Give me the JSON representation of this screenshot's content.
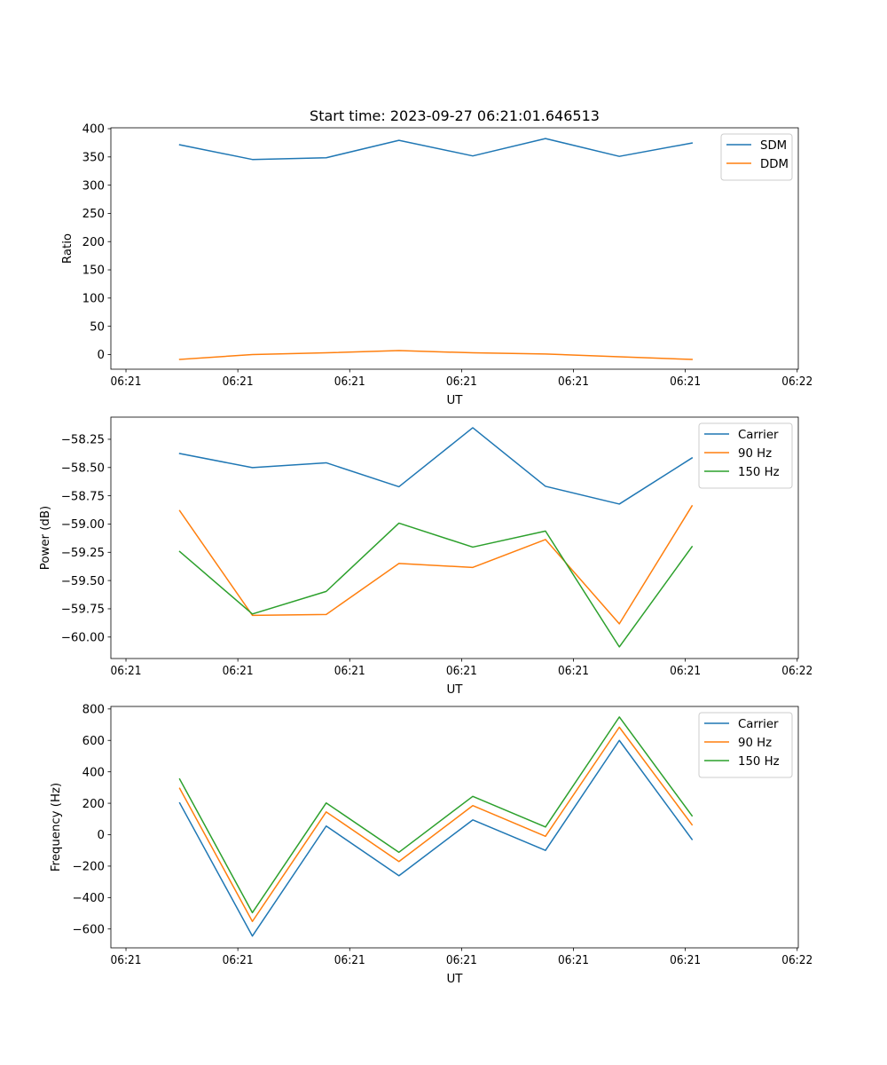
{
  "figure": {
    "title": "Start time: 2023-09-27 06:21:01.646513"
  },
  "colors": {
    "blue": "#1f77b4",
    "orange": "#ff7f0e",
    "green": "#2ca02c"
  },
  "chart_data": [
    {
      "type": "line",
      "title": "Start time: 2023-09-27 06:21:01.646513",
      "xlabel": "UT",
      "ylabel": "Ratio",
      "x_units": "seconds after 06:21:00",
      "x": [
        4.8,
        11.3,
        17.9,
        24.4,
        31.0,
        37.5,
        44.1,
        50.6
      ],
      "xlim": [
        -1.35,
        60.1
      ],
      "xticks": [
        0,
        10,
        20,
        30,
        40,
        50,
        60
      ],
      "xtick_labels": [
        "06:21",
        "06:21",
        "06:21",
        "06:21",
        "06:21",
        "06:21",
        "06:22"
      ],
      "ylim": [
        -26,
        401.6
      ],
      "yticks": [
        0,
        50,
        100,
        150,
        200,
        250,
        300,
        350,
        400
      ],
      "ytick_labels": [
        "0",
        "50",
        "100",
        "150",
        "200",
        "250",
        "300",
        "350",
        "400"
      ],
      "legend": "top-right",
      "grid": false,
      "series": [
        {
          "name": "SDM",
          "color": "#1f77b4",
          "values": [
            371.5,
            345.5,
            348.6,
            379.4,
            351.8,
            382.6,
            351.0,
            374.7
          ]
        },
        {
          "name": "DDM",
          "color": "#ff7f0e",
          "values": [
            -8.7,
            0.0,
            3.0,
            7.0,
            3.0,
            1.0,
            -4.0,
            -8.7
          ]
        }
      ]
    },
    {
      "type": "line",
      "title": "",
      "xlabel": "UT",
      "ylabel": "Power (dB)",
      "x_units": "seconds after 06:21:00",
      "x": [
        4.8,
        11.3,
        17.9,
        24.4,
        31.0,
        37.5,
        44.1,
        50.6
      ],
      "xlim": [
        -1.35,
        60.1
      ],
      "xticks": [
        0,
        10,
        20,
        30,
        40,
        50,
        60
      ],
      "xtick_labels": [
        "06:21",
        "06:21",
        "06:21",
        "06:21",
        "06:21",
        "06:21",
        "06:22"
      ],
      "ylim": [
        -60.19,
        -58.054
      ],
      "yticks": [
        -60.0,
        -59.75,
        -59.5,
        -59.25,
        -59.0,
        -58.75,
        -58.5,
        -58.25
      ],
      "ytick_labels": [
        "−60.00",
        "−59.75",
        "−59.50",
        "−59.25",
        "−59.00",
        "−58.75",
        "−58.50",
        "−58.25"
      ],
      "legend": "top-right",
      "grid": false,
      "series": [
        {
          "name": "Carrier",
          "color": "#1f77b4",
          "values": [
            -58.376,
            -58.501,
            -58.458,
            -58.67,
            -58.148,
            -58.666,
            -58.823,
            -58.415
          ]
        },
        {
          "name": "90 Hz",
          "color": "#ff7f0e",
          "values": [
            -58.882,
            -59.808,
            -59.8,
            -59.349,
            -59.384,
            -59.137,
            -59.883,
            -58.839
          ]
        },
        {
          "name": "150 Hz",
          "color": "#2ca02c",
          "values": [
            -59.243,
            -59.796,
            -59.596,
            -58.992,
            -59.204,
            -59.062,
            -60.087,
            -59.2
          ]
        }
      ]
    },
    {
      "type": "line",
      "title": "",
      "xlabel": "UT",
      "ylabel": "Frequency (Hz)",
      "x_units": "seconds after 06:21:00",
      "x": [
        4.8,
        11.3,
        17.9,
        24.4,
        31.0,
        37.5,
        44.1,
        50.6
      ],
      "xlim": [
        -1.35,
        60.1
      ],
      "xticks": [
        0,
        10,
        20,
        30,
        40,
        50,
        60
      ],
      "xtick_labels": [
        "06:21",
        "06:21",
        "06:21",
        "06:21",
        "06:21",
        "06:21",
        "06:22"
      ],
      "ylim": [
        -720,
        816
      ],
      "yticks": [
        -600,
        -400,
        -200,
        0,
        200,
        400,
        600,
        800
      ],
      "ytick_labels": [
        "−600",
        "−400",
        "−200",
        "0",
        "200",
        "400",
        "600",
        "800"
      ],
      "legend": "top-right",
      "grid": false,
      "series": [
        {
          "name": "Carrier",
          "color": "#1f77b4",
          "values": [
            202,
            -645,
            55,
            -261,
            94,
            -100,
            600,
            -30
          ]
        },
        {
          "name": "90 Hz",
          "color": "#ff7f0e",
          "values": [
            295,
            -552,
            145,
            -171,
            185,
            -10,
            684,
            63
          ]
        },
        {
          "name": "150 Hz",
          "color": "#2ca02c",
          "values": [
            354,
            -496,
            202,
            -112,
            244,
            49,
            749,
            120
          ]
        }
      ]
    }
  ]
}
